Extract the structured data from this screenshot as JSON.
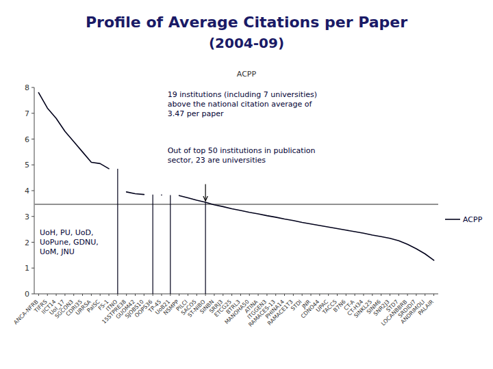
{
  "chart_data": {
    "type": "line",
    "title": "Profile of Average Citations per Paper",
    "subtitle": "(2004-09)",
    "y_label": "ACPP",
    "categories": [
      "ANCA-NFRB",
      "TIFRS",
      "IICT14",
      "UoI_17",
      "SGCON3",
      "CDRI35",
      "URRSA",
      "PaISC",
      "FS-1",
      "ITNO",
      "15STPRE38",
      "GUOM42",
      "SJOBS10",
      "OOPS36",
      "TP-45",
      "UoB21",
      "NSMPP",
      "PILCI",
      "SACO5",
      "ST-NIBO",
      "SINBN",
      "SRRJ3",
      "ETCG25",
      "BTRL3",
      "MANOHA50",
      "ATINA",
      "ITGGEN3",
      "RAMACES-13",
      "PHINA14",
      "RAMACE1T3",
      "STDI",
      "JNR",
      "CDNO44",
      "UPAC",
      "TACC5",
      "B7N6",
      "CT-A",
      "CT-H34",
      "SINKL25",
      "SINM6",
      "SNR2J3",
      "STD7",
      "LOCANBBRB",
      "SRDIDI7",
      "ANDRIMOLI",
      "PALAIR"
    ],
    "series": [
      {
        "name": "ACPP",
        "color": "#00001a",
        "values": [
          7.8,
          7.2,
          6.8,
          6.3,
          5.9,
          5.5,
          5.1,
          5.05,
          4.85,
          null,
          3.95,
          3.88,
          3.85,
          null,
          3.83,
          null,
          3.81,
          3.72,
          3.63,
          3.55,
          3.45,
          3.38,
          3.3,
          3.23,
          3.16,
          3.1,
          3.03,
          2.97,
          2.9,
          2.84,
          2.77,
          2.71,
          2.65,
          2.59,
          2.53,
          2.47,
          2.41,
          2.35,
          2.28,
          2.22,
          2.15,
          2.06,
          1.92,
          1.75,
          1.55,
          1.3
        ]
      }
    ],
    "drop_lines": [
      {
        "x": "ITNO",
        "value": 4.85
      },
      {
        "x": "OOPS36",
        "value": 3.85
      },
      {
        "x": "UoB21",
        "value": 3.83
      },
      {
        "x": "ST-NIBO",
        "value": 3.55
      }
    ],
    "hlines": [
      {
        "value": 3.47,
        "color": "#909090"
      }
    ],
    "arrows": [
      {
        "x": "ST-NIBO",
        "from": 4.25,
        "to": 3.6
      }
    ],
    "annotations": [
      {
        "text": "UoH, PU, UoD,\nUoPune, GDNU,\nUoM, JNU"
      },
      {
        "text": "19 institutions (including 7 universities)\nabove the national citation average of\n3.47 per paper"
      },
      {
        "text": "Out of top 50 institutions in publication\nsector, 23 are universities"
      }
    ],
    "ylim": [
      0,
      8
    ],
    "yticks": [
      0,
      1,
      2,
      3,
      4,
      5,
      6,
      7,
      8
    ],
    "grid": false,
    "legend": "right"
  }
}
